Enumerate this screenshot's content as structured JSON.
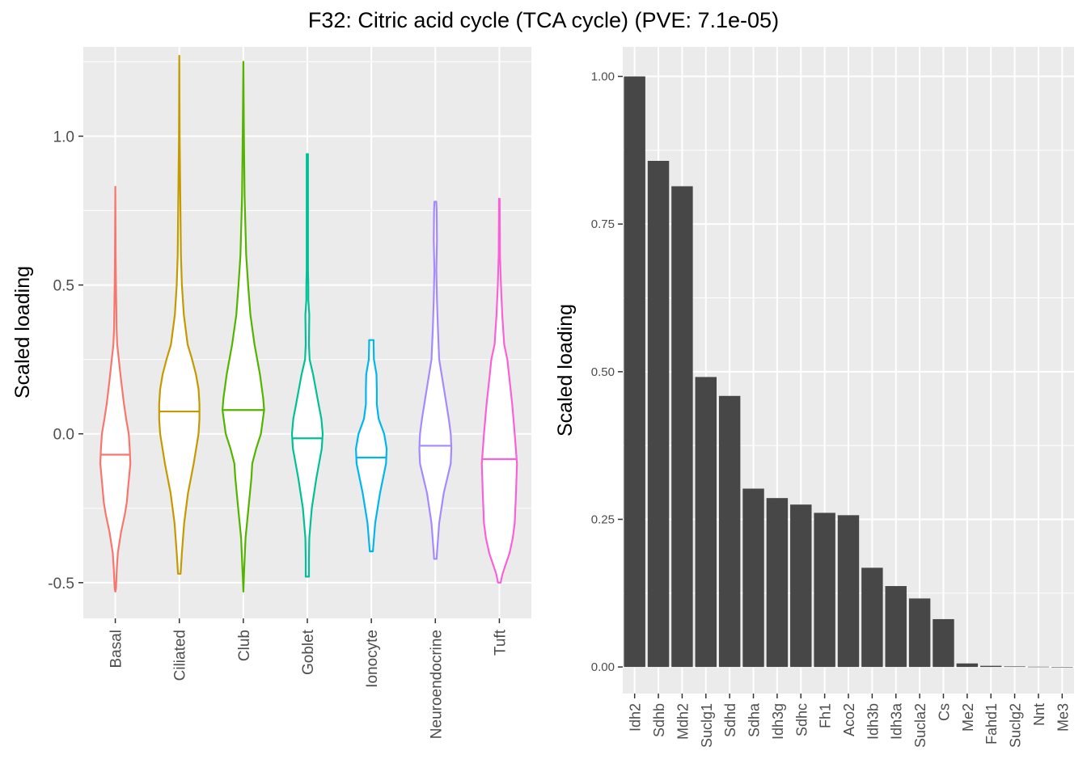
{
  "title": "F32: Citric acid cycle (TCA cycle) (PVE: 7.1e-05)",
  "chart_data": [
    {
      "type": "violin",
      "xlabel": "",
      "ylabel": "Scaled loading",
      "ylim": [
        -0.62,
        1.3
      ],
      "yticks": [
        -0.5,
        0.0,
        0.5,
        1.0
      ],
      "ytick_labels": [
        "-0.5",
        "0.0",
        "0.5",
        "1.0"
      ],
      "grid": true,
      "legend": "none",
      "categories": [
        "Basal",
        "Ciliated",
        "Club",
        "Goblet",
        "Ionocyte",
        "Neuroendocrine",
        "Tuft"
      ],
      "colors": [
        "#F8766D",
        "#C49A00",
        "#53B400",
        "#00C094",
        "#00B6EB",
        "#A58AFF",
        "#FB61D7"
      ],
      "medians": [
        -0.07,
        0.075,
        0.08,
        -0.015,
        -0.08,
        -0.04,
        -0.085
      ],
      "series": [
        {
          "name": "Basal",
          "profile": [
            [
              -0.53,
              0.0
            ],
            [
              -0.52,
              0.02
            ],
            [
              -0.45,
              0.05
            ],
            [
              -0.4,
              0.08
            ],
            [
              -0.33,
              0.18
            ],
            [
              -0.27,
              0.3
            ],
            [
              -0.23,
              0.36
            ],
            [
              -0.18,
              0.4
            ],
            [
              -0.1,
              0.47
            ],
            [
              -0.05,
              0.45
            ],
            [
              0.0,
              0.42
            ],
            [
              0.05,
              0.34
            ],
            [
              0.1,
              0.27
            ],
            [
              0.18,
              0.18
            ],
            [
              0.25,
              0.11
            ],
            [
              0.3,
              0.06
            ],
            [
              0.35,
              0.04
            ],
            [
              0.5,
              0.02
            ],
            [
              0.6,
              0.01
            ],
            [
              0.83,
              0.0
            ]
          ]
        },
        {
          "name": "Ciliated",
          "profile": [
            [
              -0.47,
              0.04
            ],
            [
              -0.4,
              0.08
            ],
            [
              -0.3,
              0.15
            ],
            [
              -0.2,
              0.27
            ],
            [
              -0.1,
              0.45
            ],
            [
              0.0,
              0.6
            ],
            [
              0.05,
              0.63
            ],
            [
              0.1,
              0.63
            ],
            [
              0.15,
              0.6
            ],
            [
              0.2,
              0.52
            ],
            [
              0.25,
              0.4
            ],
            [
              0.3,
              0.26
            ],
            [
              0.4,
              0.14
            ],
            [
              0.5,
              0.08
            ],
            [
              0.6,
              0.05
            ],
            [
              0.8,
              0.03
            ],
            [
              1.0,
              0.01
            ],
            [
              1.27,
              0.0
            ]
          ]
        },
        {
          "name": "Club",
          "profile": [
            [
              -0.53,
              0.0
            ],
            [
              -0.5,
              0.01
            ],
            [
              -0.45,
              0.03
            ],
            [
              -0.35,
              0.07
            ],
            [
              -0.25,
              0.16
            ],
            [
              -0.15,
              0.25
            ],
            [
              -0.1,
              0.28
            ],
            [
              -0.05,
              0.4
            ],
            [
              0.0,
              0.55
            ],
            [
              0.08,
              0.65
            ],
            [
              0.12,
              0.62
            ],
            [
              0.2,
              0.52
            ],
            [
              0.3,
              0.35
            ],
            [
              0.4,
              0.22
            ],
            [
              0.5,
              0.15
            ],
            [
              0.6,
              0.09
            ],
            [
              0.8,
              0.04
            ],
            [
              1.0,
              0.02
            ],
            [
              1.25,
              0.0
            ]
          ]
        },
        {
          "name": "Goblet",
          "profile": [
            [
              -0.48,
              0.05
            ],
            [
              -0.42,
              0.05
            ],
            [
              -0.35,
              0.06
            ],
            [
              -0.25,
              0.14
            ],
            [
              -0.15,
              0.28
            ],
            [
              -0.05,
              0.45
            ],
            [
              0.0,
              0.48
            ],
            [
              0.05,
              0.44
            ],
            [
              0.1,
              0.35
            ],
            [
              0.2,
              0.18
            ],
            [
              0.25,
              0.07
            ],
            [
              0.3,
              0.05
            ],
            [
              0.4,
              0.06
            ],
            [
              0.45,
              0.03
            ],
            [
              0.5,
              0.03
            ],
            [
              0.55,
              0.02
            ],
            [
              0.6,
              0.02
            ],
            [
              0.8,
              0.02
            ],
            [
              0.94,
              0.02
            ]
          ]
        },
        {
          "name": "Ionocyte",
          "profile": [
            [
              -0.395,
              0.05
            ],
            [
              -0.38,
              0.06
            ],
            [
              -0.3,
              0.12
            ],
            [
              -0.2,
              0.27
            ],
            [
              -0.1,
              0.46
            ],
            [
              -0.05,
              0.48
            ],
            [
              0.0,
              0.4
            ],
            [
              0.05,
              0.23
            ],
            [
              0.1,
              0.17
            ],
            [
              0.15,
              0.17
            ],
            [
              0.2,
              0.16
            ],
            [
              0.25,
              0.08
            ],
            [
              0.3,
              0.07
            ],
            [
              0.315,
              0.07
            ]
          ]
        },
        {
          "name": "Neuroendocrine",
          "profile": [
            [
              -0.42,
              0.04
            ],
            [
              -0.4,
              0.05
            ],
            [
              -0.3,
              0.12
            ],
            [
              -0.2,
              0.26
            ],
            [
              -0.1,
              0.48
            ],
            [
              -0.05,
              0.5
            ],
            [
              0.0,
              0.48
            ],
            [
              0.05,
              0.42
            ],
            [
              0.15,
              0.27
            ],
            [
              0.25,
              0.12
            ],
            [
              0.35,
              0.08
            ],
            [
              0.45,
              0.05
            ],
            [
              0.55,
              0.03
            ],
            [
              0.65,
              0.05
            ],
            [
              0.75,
              0.04
            ],
            [
              0.78,
              0.03
            ]
          ]
        },
        {
          "name": "Tuft",
          "profile": [
            [
              -0.5,
              0.04
            ],
            [
              -0.47,
              0.1
            ],
            [
              -0.4,
              0.32
            ],
            [
              -0.35,
              0.42
            ],
            [
              -0.3,
              0.48
            ],
            [
              -0.2,
              0.52
            ],
            [
              -0.1,
              0.55
            ],
            [
              0.0,
              0.48
            ],
            [
              0.1,
              0.4
            ],
            [
              0.2,
              0.3
            ],
            [
              0.25,
              0.25
            ],
            [
              0.3,
              0.15
            ],
            [
              0.4,
              0.09
            ],
            [
              0.5,
              0.05
            ],
            [
              0.6,
              0.02
            ],
            [
              0.79,
              0.01
            ]
          ]
        }
      ]
    },
    {
      "type": "bar",
      "xlabel": "",
      "ylabel": "Scaled loading",
      "ylim": [
        -0.045,
        1.05
      ],
      "yticks": [
        0.0,
        0.25,
        0.5,
        0.75,
        1.0
      ],
      "ytick_labels": [
        "0.00",
        "0.25",
        "0.50",
        "0.75",
        "1.00"
      ],
      "grid": true,
      "bar_color": "#474747",
      "categories": [
        "Idh2",
        "Sdhb",
        "Mdh2",
        "Suclg1",
        "Sdhd",
        "Sdha",
        "Idh3g",
        "Sdhc",
        "Fh1",
        "Aco2",
        "Idh3b",
        "Idh3a",
        "Sucla2",
        "Cs",
        "Me2",
        "Fahd1",
        "Suclg2",
        "Nnt",
        "Me3"
      ],
      "values": [
        1.0,
        0.857,
        0.814,
        0.491,
        0.459,
        0.302,
        0.286,
        0.275,
        0.261,
        0.257,
        0.168,
        0.137,
        0.116,
        0.081,
        0.006,
        0.002,
        0.001,
        0.0005,
        0.0002
      ]
    }
  ]
}
